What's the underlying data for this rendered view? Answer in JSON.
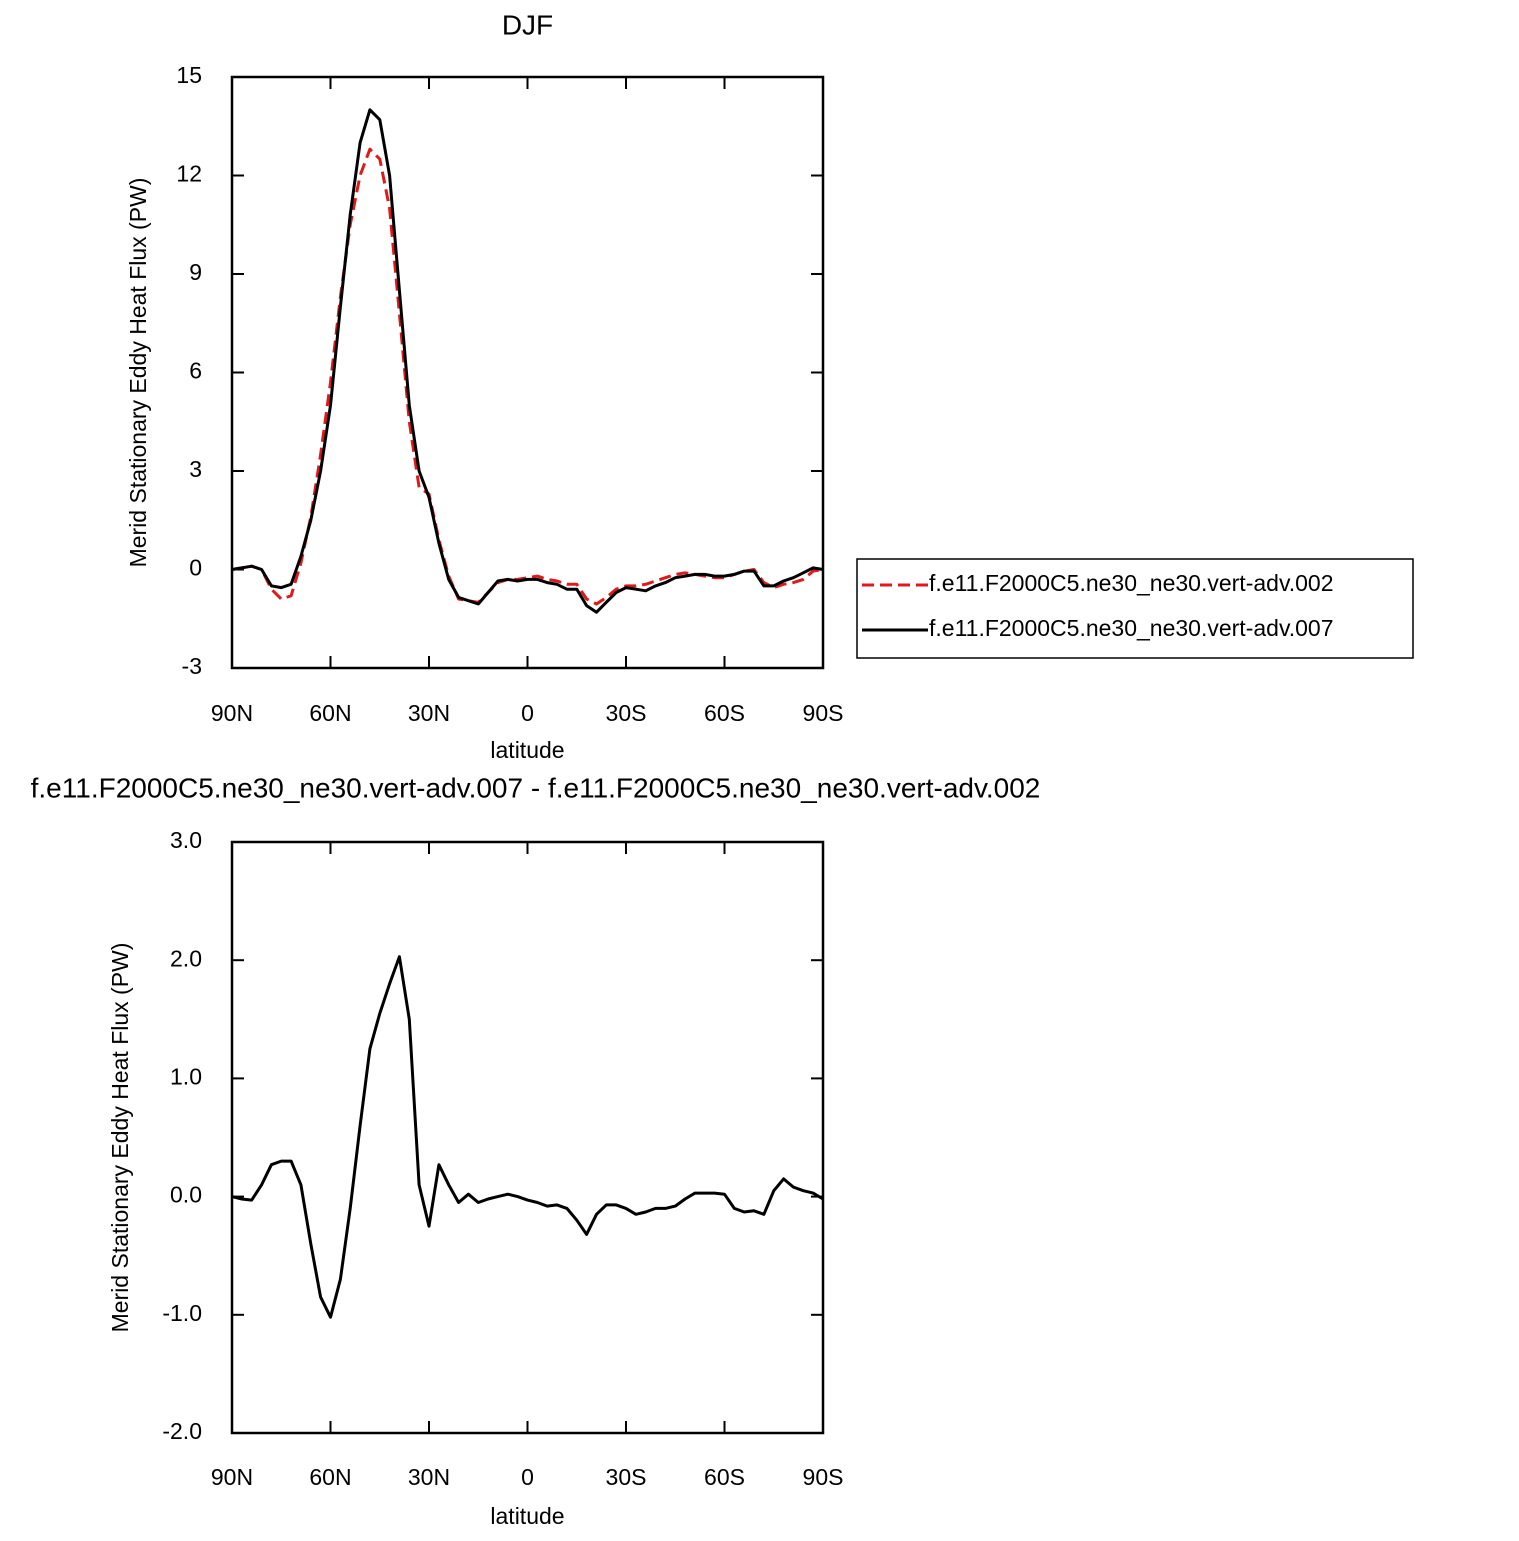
{
  "chart_data": [
    {
      "type": "line",
      "title": "DJF",
      "xlabel": "latitude",
      "ylabel": "Merid Stationary Eddy Heat Flux (PW)",
      "x": [
        90,
        87,
        84,
        81,
        78,
        75,
        72,
        69,
        66,
        63,
        60,
        57,
        54,
        51,
        48,
        45,
        42,
        39,
        36,
        33,
        30,
        27,
        24,
        21,
        18,
        15,
        12,
        9,
        6,
        3,
        0,
        -3,
        -6,
        -9,
        -12,
        -15,
        -18,
        -21,
        -24,
        -27,
        -30,
        -33,
        -36,
        -39,
        -42,
        -45,
        -48,
        -51,
        -54,
        -57,
        -60,
        -63,
        -66,
        -69,
        -72,
        -75,
        -78,
        -81,
        -84,
        -87,
        -90
      ],
      "xlim": [
        90,
        -90
      ],
      "xticks": [
        {
          "value": 90,
          "label": "90N"
        },
        {
          "value": 60,
          "label": "60N"
        },
        {
          "value": 30,
          "label": "30N"
        },
        0,
        {
          "value": -30,
          "label": "30S"
        },
        {
          "value": -60,
          "label": "60S"
        },
        {
          "value": -90,
          "label": "90S"
        }
      ],
      "ylim": [
        -3,
        15
      ],
      "yticks": [
        -3,
        0,
        3,
        6,
        9,
        12,
        15
      ],
      "legend": "right",
      "series": [
        {
          "name": "f.e11.F2000C5.ne30_ne30.vert-adv.002",
          "color": "#e0191b",
          "dash": true,
          "values": [
            0,
            0.05,
            0.1,
            0,
            -0.6,
            -0.9,
            -0.8,
            0.2,
            1.6,
            3.5,
            5.7,
            8.3,
            10.5,
            12.0,
            12.8,
            12.5,
            11.0,
            7.8,
            4.5,
            2.5,
            2.3,
            0.9,
            -0.2,
            -0.9,
            -0.95,
            -1.0,
            -0.7,
            -0.4,
            -0.3,
            -0.3,
            -0.25,
            -0.2,
            -0.3,
            -0.35,
            -0.45,
            -0.45,
            -0.9,
            -1.05,
            -0.85,
            -0.6,
            -0.5,
            -0.5,
            -0.45,
            -0.35,
            -0.25,
            -0.15,
            -0.1,
            -0.15,
            -0.2,
            -0.25,
            -0.25,
            -0.15,
            -0.05,
            0.0,
            -0.4,
            -0.55,
            -0.45,
            -0.4,
            -0.3,
            -0.05,
            0
          ]
        },
        {
          "name": "f.e11.F2000C5.ne30_ne30.vert-adv.007",
          "color": "#000000",
          "dash": false,
          "values": [
            0,
            0.05,
            0.1,
            0,
            -0.5,
            -0.55,
            -0.45,
            0.4,
            1.5,
            3.0,
            5.0,
            8.0,
            10.8,
            13.0,
            14.0,
            13.7,
            12.0,
            8.5,
            5.0,
            3.0,
            2.2,
            0.8,
            -0.3,
            -0.85,
            -0.95,
            -1.05,
            -0.7,
            -0.35,
            -0.3,
            -0.35,
            -0.3,
            -0.3,
            -0.4,
            -0.45,
            -0.6,
            -0.6,
            -1.1,
            -1.3,
            -1.0,
            -0.7,
            -0.55,
            -0.6,
            -0.65,
            -0.5,
            -0.4,
            -0.25,
            -0.2,
            -0.15,
            -0.15,
            -0.2,
            -0.2,
            -0.15,
            -0.05,
            -0.05,
            -0.5,
            -0.5,
            -0.35,
            -0.25,
            -0.1,
            0.05,
            0
          ]
        }
      ]
    },
    {
      "type": "line",
      "title": "f.e11.F2000C5.ne30_ne30.vert-adv.007 - f.e11.F2000C5.ne30_ne30.vert-adv.002",
      "xlabel": "latitude",
      "ylabel": "Merid Stationary Eddy Heat Flux (PW)",
      "x": [
        90,
        87,
        84,
        81,
        78,
        75,
        72,
        69,
        66,
        63,
        60,
        57,
        54,
        51,
        48,
        45,
        42,
        39,
        36,
        33,
        30,
        27,
        24,
        21,
        18,
        15,
        12,
        9,
        6,
        3,
        0,
        -3,
        -6,
        -9,
        -12,
        -15,
        -18,
        -21,
        -24,
        -27,
        -30,
        -33,
        -36,
        -39,
        -42,
        -45,
        -48,
        -51,
        -54,
        -57,
        -60,
        -63,
        -66,
        -69,
        -72,
        -75,
        -78,
        -81,
        -84,
        -87,
        -90
      ],
      "xlim": [
        90,
        -90
      ],
      "xticks": [
        {
          "value": 90,
          "label": "90N"
        },
        {
          "value": 60,
          "label": "60N"
        },
        {
          "value": 30,
          "label": "30N"
        },
        0,
        {
          "value": -30,
          "label": "30S"
        },
        {
          "value": -60,
          "label": "60S"
        },
        {
          "value": -90,
          "label": "90S"
        }
      ],
      "ylim": [
        -2,
        3
      ],
      "yticks": [
        {
          "value": -2,
          "label": "-2.0"
        },
        {
          "value": -1,
          "label": "-1.0"
        },
        {
          "value": 0,
          "label": "0.0"
        },
        {
          "value": 1,
          "label": "1.0"
        },
        {
          "value": 2,
          "label": "2.0"
        },
        {
          "value": 3,
          "label": "3.0"
        }
      ],
      "series": [
        {
          "color": "#000000",
          "values": [
            0,
            -0.02,
            -0.03,
            0.1,
            0.27,
            0.3,
            0.3,
            0.1,
            -0.4,
            -0.85,
            -1.02,
            -0.7,
            -0.1,
            0.6,
            1.25,
            1.55,
            1.8,
            2.03,
            1.5,
            0.1,
            -0.25,
            0.27,
            0.1,
            -0.05,
            0.02,
            -0.05,
            -0.02,
            0.0,
            0.02,
            0.0,
            -0.03,
            -0.05,
            -0.08,
            -0.07,
            -0.1,
            -0.2,
            -0.32,
            -0.15,
            -0.07,
            -0.07,
            -0.1,
            -0.15,
            -0.13,
            -0.1,
            -0.1,
            -0.08,
            -0.02,
            0.03,
            0.03,
            0.03,
            0.02,
            -0.1,
            -0.13,
            -0.12,
            -0.15,
            0.05,
            0.15,
            0.08,
            0.05,
            0.03,
            -0.02
          ]
        }
      ]
    }
  ]
}
